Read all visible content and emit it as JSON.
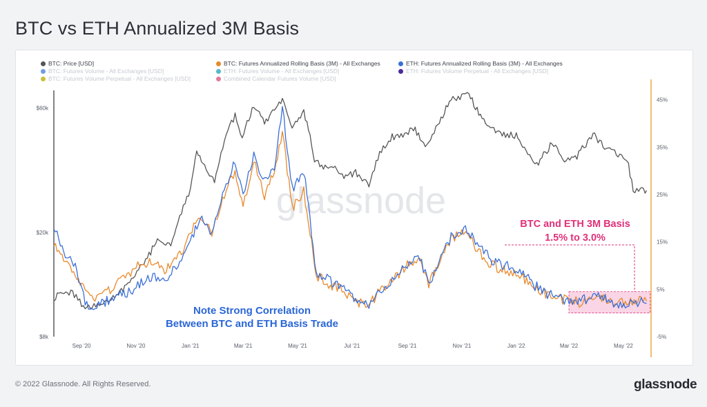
{
  "page": {
    "title": "BTC vs ETH Annualized 3M Basis",
    "copyright": "© 2022 Glassnode. All Rights Reserved.",
    "logo": "glassnode",
    "watermark": "glassnode"
  },
  "legend": [
    {
      "label": "BTC: Price [USD]",
      "color": "#555555",
      "active": true
    },
    {
      "label": "BTC: Futures Annualized Rolling Basis (3M) - All Exchanges",
      "color": "#e8892b",
      "active": true
    },
    {
      "label": "ETH: Futures Annualized Rolling Basis (3M) - All Exchanges",
      "color": "#3a6fd8",
      "active": true
    },
    {
      "label": "BTC: Futures Volume - All Exchanges [USD]",
      "color": "#6f9fe0",
      "active": false
    },
    {
      "label": "ETH: Futures Volume - All Exchanges [USD]",
      "color": "#55b9c9",
      "active": false
    },
    {
      "label": "ETH: Futures Volume Perpetual - All Exchanges [USD]",
      "color": "#4b2a9c",
      "active": false
    },
    {
      "label": "BTC: Futures Volume Perpetual - All Exchanges [USD]",
      "color": "#c7c23a",
      "active": false
    },
    {
      "label": "Combined Calendar Futures Volume [USD]",
      "color": "#e37a9c",
      "active": false
    }
  ],
  "chart_data": {
    "type": "line",
    "x_ticks": [
      "Sep '20",
      "Nov '20",
      "Jan '21",
      "Mar '21",
      "May '21",
      "Jul '21",
      "Sep '21",
      "Nov '21",
      "Jan '22",
      "Mar '22",
      "May '22"
    ],
    "y_left_ticks": [
      "$60k",
      "$20k",
      "$8k"
    ],
    "y_left_scale": "log",
    "y_left_range": [
      8000,
      70000
    ],
    "y_right_ticks": [
      "45%",
      "35%",
      "25%",
      "15%",
      "5%",
      "-5%"
    ],
    "y_right_range": [
      -5,
      47
    ],
    "x_range": [
      "2020-08-01",
      "2022-06-01"
    ],
    "series": [
      {
        "name": "BTC: Price [USD]",
        "axis": "left",
        "color": "#555555",
        "points": [
          [
            "2020-08-01",
            11300
          ],
          [
            "2020-08-20",
            11900
          ],
          [
            "2020-09-05",
            10300
          ],
          [
            "2020-09-25",
            10700
          ],
          [
            "2020-10-10",
            11400
          ],
          [
            "2020-10-25",
            13100
          ],
          [
            "2020-11-10",
            15300
          ],
          [
            "2020-11-25",
            18500
          ],
          [
            "2020-12-10",
            18200
          ],
          [
            "2020-12-20",
            23000
          ],
          [
            "2021-01-01",
            29500
          ],
          [
            "2021-01-08",
            40000
          ],
          [
            "2021-01-15",
            36500
          ],
          [
            "2021-01-28",
            31500
          ],
          [
            "2021-02-08",
            45000
          ],
          [
            "2021-02-20",
            56000
          ],
          [
            "2021-02-28",
            45500
          ],
          [
            "2021-03-13",
            61000
          ],
          [
            "2021-03-25",
            52500
          ],
          [
            "2021-04-05",
            58500
          ],
          [
            "2021-04-14",
            63500
          ],
          [
            "2021-04-25",
            49500
          ],
          [
            "2021-05-08",
            58000
          ],
          [
            "2021-05-15",
            47000
          ],
          [
            "2021-05-20",
            38000
          ],
          [
            "2021-05-30",
            35000
          ],
          [
            "2021-06-10",
            36500
          ],
          [
            "2021-06-22",
            32500
          ],
          [
            "2021-07-05",
            34000
          ],
          [
            "2021-07-20",
            30000
          ],
          [
            "2021-08-01",
            40000
          ],
          [
            "2021-08-15",
            46500
          ],
          [
            "2021-08-31",
            47000
          ],
          [
            "2021-09-06",
            51500
          ],
          [
            "2021-09-21",
            42500
          ],
          [
            "2021-10-05",
            51500
          ],
          [
            "2021-10-20",
            64500
          ],
          [
            "2021-11-09",
            67500
          ],
          [
            "2021-11-20",
            57500
          ],
          [
            "2021-12-05",
            49500
          ],
          [
            "2021-12-20",
            47500
          ],
          [
            "2022-01-01",
            47000
          ],
          [
            "2022-01-10",
            41500
          ],
          [
            "2022-01-24",
            36000
          ],
          [
            "2022-02-10",
            44000
          ],
          [
            "2022-02-24",
            37500
          ],
          [
            "2022-03-10",
            39000
          ],
          [
            "2022-03-28",
            47500
          ],
          [
            "2022-04-10",
            42000
          ],
          [
            "2022-04-25",
            40000
          ],
          [
            "2022-05-05",
            38000
          ],
          [
            "2022-05-12",
            29000
          ],
          [
            "2022-05-20",
            29500
          ],
          [
            "2022-05-27",
            29000
          ]
        ]
      },
      {
        "name": "BTC: Futures Annualized Rolling Basis (3M) - All Exchanges",
        "axis": "right",
        "color": "#e8892b",
        "points": [
          [
            "2020-08-01",
            15
          ],
          [
            "2020-08-12",
            12
          ],
          [
            "2020-08-25",
            8
          ],
          [
            "2020-09-05",
            4.5
          ],
          [
            "2020-09-20",
            3
          ],
          [
            "2020-10-05",
            5
          ],
          [
            "2020-10-20",
            8
          ],
          [
            "2020-11-05",
            10
          ],
          [
            "2020-11-20",
            11
          ],
          [
            "2020-12-05",
            9
          ],
          [
            "2020-12-20",
            12
          ],
          [
            "2021-01-01",
            17
          ],
          [
            "2021-01-12",
            20
          ],
          [
            "2021-01-25",
            17
          ],
          [
            "2021-02-08",
            25
          ],
          [
            "2021-02-20",
            30
          ],
          [
            "2021-03-01",
            22
          ],
          [
            "2021-03-13",
            32
          ],
          [
            "2021-03-25",
            25
          ],
          [
            "2021-04-05",
            30
          ],
          [
            "2021-04-14",
            38
          ],
          [
            "2021-04-25",
            22
          ],
          [
            "2021-05-08",
            26
          ],
          [
            "2021-05-15",
            17
          ],
          [
            "2021-05-22",
            8
          ],
          [
            "2021-06-05",
            6
          ],
          [
            "2021-06-20",
            5
          ],
          [
            "2021-07-05",
            2.5
          ],
          [
            "2021-07-20",
            1.5
          ],
          [
            "2021-08-01",
            5
          ],
          [
            "2021-08-15",
            7
          ],
          [
            "2021-09-01",
            10
          ],
          [
            "2021-09-15",
            11
          ],
          [
            "2021-09-25",
            6
          ],
          [
            "2021-10-05",
            10
          ],
          [
            "2021-10-20",
            16
          ],
          [
            "2021-11-05",
            17
          ],
          [
            "2021-11-20",
            13
          ],
          [
            "2021-12-05",
            10
          ],
          [
            "2021-12-20",
            9
          ],
          [
            "2022-01-05",
            8
          ],
          [
            "2022-01-20",
            5.5
          ],
          [
            "2022-02-05",
            4
          ],
          [
            "2022-02-20",
            3
          ],
          [
            "2022-03-05",
            2.5
          ],
          [
            "2022-03-20",
            2
          ],
          [
            "2022-04-05",
            3.5
          ],
          [
            "2022-04-20",
            2.5
          ],
          [
            "2022-05-05",
            2
          ],
          [
            "2022-05-15",
            2.5
          ],
          [
            "2022-05-27",
            2.5
          ]
        ]
      },
      {
        "name": "ETH: Futures Annualized Rolling Basis (3M) - All Exchanges",
        "axis": "right",
        "color": "#3a6fd8",
        "points": [
          [
            "2020-08-01",
            18
          ],
          [
            "2020-08-12",
            13
          ],
          [
            "2020-08-25",
            10
          ],
          [
            "2020-09-05",
            2
          ],
          [
            "2020-09-20",
            1.5
          ],
          [
            "2020-10-05",
            3
          ],
          [
            "2020-10-20",
            4
          ],
          [
            "2020-11-05",
            6
          ],
          [
            "2020-11-20",
            8
          ],
          [
            "2020-12-05",
            7
          ],
          [
            "2020-12-20",
            11
          ],
          [
            "2021-01-01",
            15
          ],
          [
            "2021-01-12",
            20
          ],
          [
            "2021-01-25",
            17
          ],
          [
            "2021-02-08",
            26
          ],
          [
            "2021-02-20",
            32
          ],
          [
            "2021-03-01",
            25
          ],
          [
            "2021-03-13",
            33
          ],
          [
            "2021-03-25",
            28
          ],
          [
            "2021-04-05",
            30
          ],
          [
            "2021-04-14",
            44
          ],
          [
            "2021-04-25",
            26
          ],
          [
            "2021-05-08",
            30
          ],
          [
            "2021-05-15",
            20
          ],
          [
            "2021-05-22",
            8
          ],
          [
            "2021-06-05",
            7
          ],
          [
            "2021-06-20",
            5
          ],
          [
            "2021-07-05",
            3
          ],
          [
            "2021-07-20",
            1.5
          ],
          [
            "2021-08-01",
            5
          ],
          [
            "2021-08-15",
            7
          ],
          [
            "2021-09-01",
            10
          ],
          [
            "2021-09-15",
            12
          ],
          [
            "2021-09-25",
            6
          ],
          [
            "2021-10-05",
            10
          ],
          [
            "2021-10-20",
            16
          ],
          [
            "2021-11-05",
            18
          ],
          [
            "2021-11-20",
            14
          ],
          [
            "2021-12-05",
            11
          ],
          [
            "2021-12-20",
            10
          ],
          [
            "2022-01-05",
            9
          ],
          [
            "2022-01-20",
            6
          ],
          [
            "2022-02-05",
            4
          ],
          [
            "2022-02-20",
            3
          ],
          [
            "2022-03-05",
            2
          ],
          [
            "2022-03-20",
            3
          ],
          [
            "2022-04-05",
            4
          ],
          [
            "2022-04-20",
            2
          ],
          [
            "2022-05-05",
            1.5
          ],
          [
            "2022-05-15",
            2.5
          ],
          [
            "2022-05-27",
            2
          ]
        ]
      }
    ],
    "annotations": [
      {
        "text": [
          "BTC and ETH 3M Basis",
          "1.5% to 3.0%"
        ],
        "color": "#e0307a"
      },
      {
        "text": [
          "Note Strong Correlation",
          "Between BTC and ETH Basis Trade"
        ],
        "color": "#2a66d6"
      }
    ],
    "highlight_band": {
      "x_start": "2022-03-01",
      "x_end": "2022-05-31",
      "y_low": 1.5,
      "y_high": 3.0,
      "color": "#f7c7dc"
    },
    "grid": false
  }
}
